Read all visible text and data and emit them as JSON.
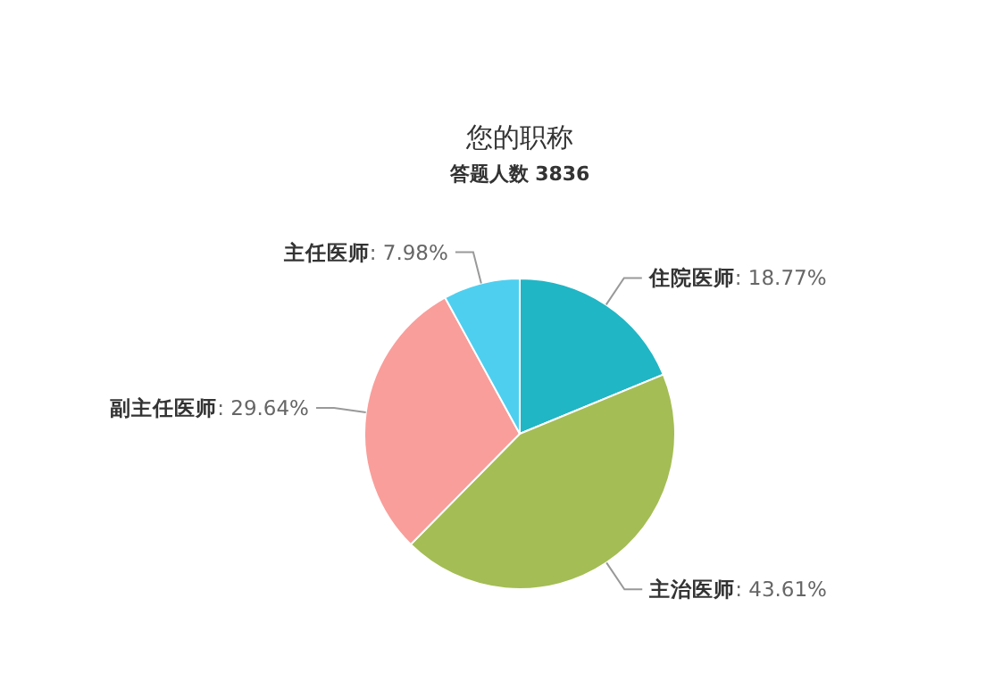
{
  "chart_data": {
    "type": "pie",
    "title": "您的职称",
    "subtitle": "答题人数 3836",
    "categories": [
      "住院医师",
      "主治医师",
      "副主任医师",
      "主任医师"
    ],
    "values": [
      18.77,
      43.61,
      29.64,
      7.98
    ],
    "value_labels": [
      ": 18.77%",
      ": 43.61%",
      ": 29.64%",
      ": 7.98%"
    ],
    "colors": [
      "#20b6c5",
      "#a4bd55",
      "#f99e9b",
      "#4ecfef"
    ]
  }
}
